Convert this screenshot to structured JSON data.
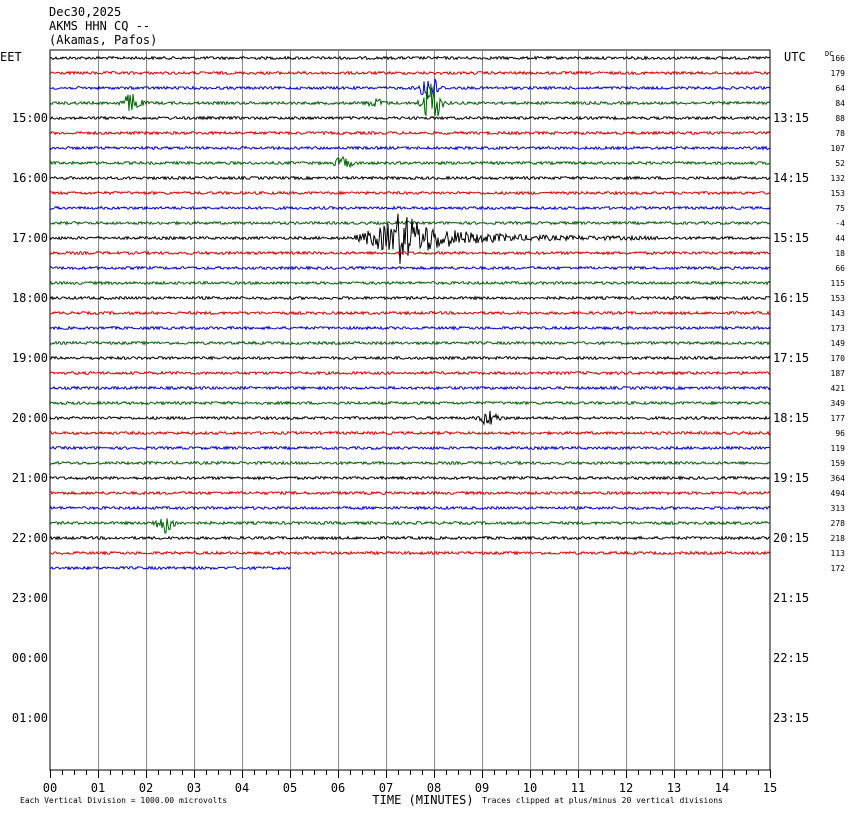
{
  "header": {
    "date": "Dec30,2025",
    "station": "AKMS HHN CQ --",
    "location": "(Akamas, Pafos)"
  },
  "chart_data": {
    "type": "line",
    "title": "",
    "left_tz": "EET",
    "right_tz": "UTC",
    "dc_label": "DC",
    "xlabel": "TIME (MINUTES)",
    "x_ticks": [
      "00",
      "01",
      "02",
      "03",
      "04",
      "05",
      "06",
      "07",
      "08",
      "09",
      "10",
      "11",
      "12",
      "13",
      "14",
      "15"
    ],
    "xlim": [
      0,
      15
    ],
    "left_time_labels": [
      "15:00",
      "16:00",
      "17:00",
      "18:00",
      "19:00",
      "20:00",
      "21:00",
      "22:00",
      "23:00",
      "00:00",
      "01:00"
    ],
    "right_time_labels": [
      "13:15",
      "14:15",
      "15:15",
      "16:15",
      "17:15",
      "18:15",
      "19:15",
      "20:15",
      "21:15",
      "22:15",
      "23:15"
    ],
    "dc_offsets": [
      "166",
      "179",
      "64",
      "84",
      "88",
      "78",
      "107",
      "52",
      "132",
      "153",
      "75",
      "-4",
      "44",
      "18",
      "66",
      "115",
      "153",
      "143",
      "173",
      "149",
      "170",
      "187",
      "421",
      "349",
      "177",
      "96",
      "119",
      "159",
      "364",
      "494",
      "313",
      "278",
      "218",
      "113",
      "172"
    ],
    "trace_colors": [
      "#000000",
      "#d40000",
      "#0000d4",
      "#006400"
    ],
    "trace_count": 35,
    "last_trace_end_minute": 5.0,
    "events": [
      {
        "trace": 3,
        "minute": 1.7,
        "amplitude": 0.9
      },
      {
        "trace": 3,
        "minute": 6.8,
        "amplitude": 0.35
      },
      {
        "trace": 2,
        "minute": 7.9,
        "amplitude": 1.4
      },
      {
        "trace": 3,
        "minute": 7.95,
        "amplitude": 2.2
      },
      {
        "trace": 7,
        "minute": 6.1,
        "amplitude": 0.5
      },
      {
        "trace": 12,
        "minute": 7.2,
        "amplitude": 3.0
      },
      {
        "trace": 24,
        "minute": 9.15,
        "amplitude": 0.7
      },
      {
        "trace": 31,
        "minute": 2.4,
        "amplitude": 0.9
      }
    ],
    "legend": "none",
    "grid": true
  },
  "footer": {
    "scale_note": "Each Vertical Division = 1000.00 microvolts",
    "clip_note": "Traces clipped at plus/minus 20 vertical divisions"
  }
}
